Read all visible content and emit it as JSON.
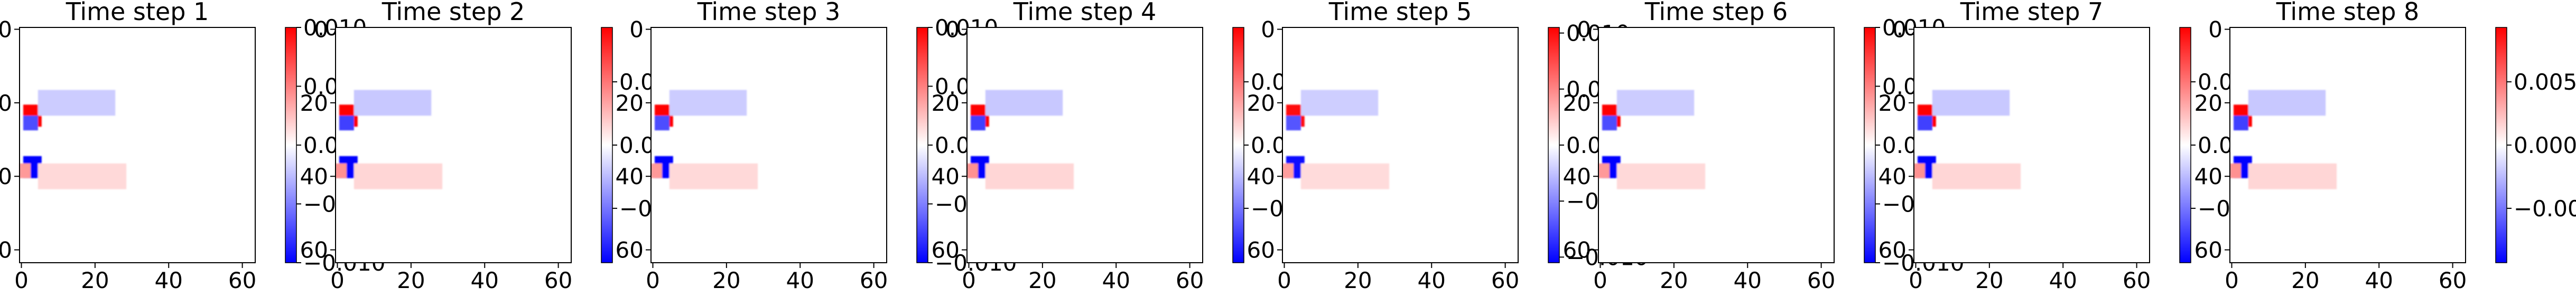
{
  "figure": {
    "panels": [
      {
        "title": "Time step 1",
        "colorbar": {
          "min": -0.01,
          "max": 0.01,
          "ticks": [
            -0.01,
            -0.005,
            0.0,
            0.005,
            0.01
          ],
          "tick_labels": [
            "−0.010",
            "−0.005",
            "0.000",
            "0.005",
            "0.010"
          ]
        }
      },
      {
        "title": "Time step 2",
        "colorbar": {
          "min": -0.0093,
          "max": 0.0093,
          "ticks": [
            -0.005,
            0.0,
            0.005
          ],
          "tick_labels": [
            "−0.005",
            "0.000",
            "0.005"
          ]
        }
      },
      {
        "title": "Time step 3",
        "colorbar": {
          "min": -0.01,
          "max": 0.01,
          "ticks": [
            -0.01,
            -0.005,
            0.0,
            0.005,
            0.01
          ],
          "tick_labels": [
            "−0.010",
            "−0.005",
            "0.000",
            "0.005",
            "0.010"
          ]
        }
      },
      {
        "title": "Time step 4",
        "colorbar": {
          "min": -0.0093,
          "max": 0.0093,
          "ticks": [
            -0.005,
            0.0,
            0.005
          ],
          "tick_labels": [
            "−0.005",
            "0.000",
            "0.005"
          ]
        }
      },
      {
        "title": "Time step 5",
        "colorbar": {
          "min": -0.0105,
          "max": 0.0105,
          "ticks": [
            -0.01,
            -0.005,
            0.0,
            0.005,
            0.01
          ],
          "tick_labels": [
            "−0.010",
            "−0.005",
            "0.000",
            "0.005",
            "0.010"
          ]
        }
      },
      {
        "title": "Time step 6",
        "colorbar": {
          "min": -0.01,
          "max": 0.01,
          "ticks": [
            -0.01,
            -0.005,
            0.0,
            0.005,
            0.01
          ],
          "tick_labels": [
            "−0.010",
            "−0.005",
            "0.000",
            "0.005",
            "0.010"
          ]
        }
      },
      {
        "title": "Time step 7",
        "colorbar": {
          "min": -0.0093,
          "max": 0.0093,
          "ticks": [
            -0.005,
            0.0,
            0.005
          ],
          "tick_labels": [
            "−0.005",
            "0.000",
            "0.005"
          ]
        }
      },
      {
        "title": "Time step 8",
        "colorbar": {
          "min": -0.0093,
          "max": 0.0093,
          "ticks": [
            -0.005,
            0.0,
            0.005
          ],
          "tick_labels": [
            "−0.005",
            "0.000",
            "0.005"
          ]
        }
      }
    ]
  },
  "chart_data": {
    "type": "heatmap",
    "colormap": "bwr",
    "colors": {
      "negative": "#0000ff",
      "zero": "#ffffff",
      "positive": "#ff0000"
    },
    "grid_size": [
      64,
      64
    ],
    "xlim": [
      0,
      63
    ],
    "ylim": [
      63,
      0
    ],
    "x_ticks": [
      0,
      20,
      40,
      60
    ],
    "x_tick_labels": [
      "0",
      "20",
      "40",
      "60"
    ],
    "y_ticks": [
      0,
      20,
      40,
      60
    ],
    "y_tick_labels": [
      "0",
      "20",
      "40",
      "60"
    ],
    "grid": false,
    "panel_count": 8,
    "features": [
      {
        "x": [
          1,
          5
        ],
        "y": [
          21,
          26
        ],
        "sign": "positive",
        "peak": 0.01
      },
      {
        "x": [
          1,
          4
        ],
        "y": [
          24,
          27
        ],
        "sign": "negative",
        "peak": -0.007
      },
      {
        "x": [
          5,
          25
        ],
        "y": [
          17,
          23
        ],
        "sign": "negative",
        "peak": -0.002
      },
      {
        "x": [
          1,
          5
        ],
        "y": [
          35,
          40
        ],
        "sign": "negative",
        "peak": -0.01
      },
      {
        "x": [
          0,
          2
        ],
        "y": [
          37,
          40
        ],
        "sign": "positive",
        "peak": 0.004
      },
      {
        "x": [
          5,
          28
        ],
        "y": [
          37,
          43
        ],
        "sign": "positive",
        "peak": 0.0015
      }
    ]
  }
}
